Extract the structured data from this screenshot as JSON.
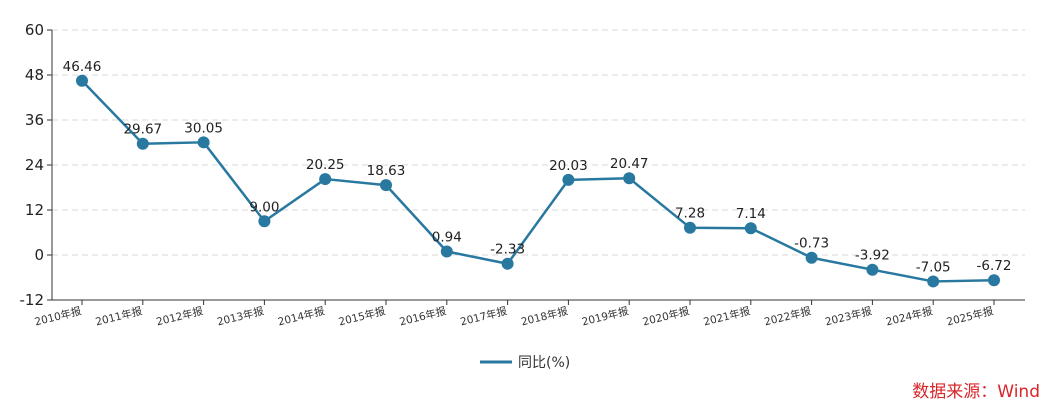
{
  "chart_data": {
    "type": "line",
    "categories": [
      "2010年报",
      "2011年报",
      "2012年报",
      "2013年报",
      "2014年报",
      "2015年报",
      "2016年报",
      "2017年报",
      "2018年报",
      "2019年报",
      "2020年报",
      "2021年报",
      "2022年报",
      "2023年报",
      "2024年报",
      "2025年报"
    ],
    "series": [
      {
        "name": "同比(%)",
        "values": [
          46.46,
          29.67,
          30.05,
          9.0,
          20.25,
          18.63,
          0.94,
          -2.33,
          20.03,
          20.47,
          7.28,
          7.14,
          -0.73,
          -3.92,
          -7.05,
          -6.72
        ],
        "value_labels": [
          "46.46",
          "29.67",
          "30.05",
          "9.00",
          "20.25",
          "18.63",
          "0.94",
          "-2.33",
          "20.03",
          "20.47",
          "7.28",
          "7.14",
          "-0.73",
          "-3.92",
          "-7.05",
          "-6.72"
        ],
        "color": "#2878a0"
      }
    ],
    "yticks": [
      60,
      48,
      36,
      24,
      12,
      0,
      -12
    ],
    "ylim": [
      -12,
      60
    ],
    "grid": true,
    "legend": "bottom-center",
    "title": "",
    "xlabel": "",
    "ylabel": ""
  },
  "source_note": "数据来源：Wind",
  "colors": {
    "line": "#2878a0",
    "grid": "#d9d9d9",
    "axis": "#333333",
    "source": "#d9262b"
  }
}
